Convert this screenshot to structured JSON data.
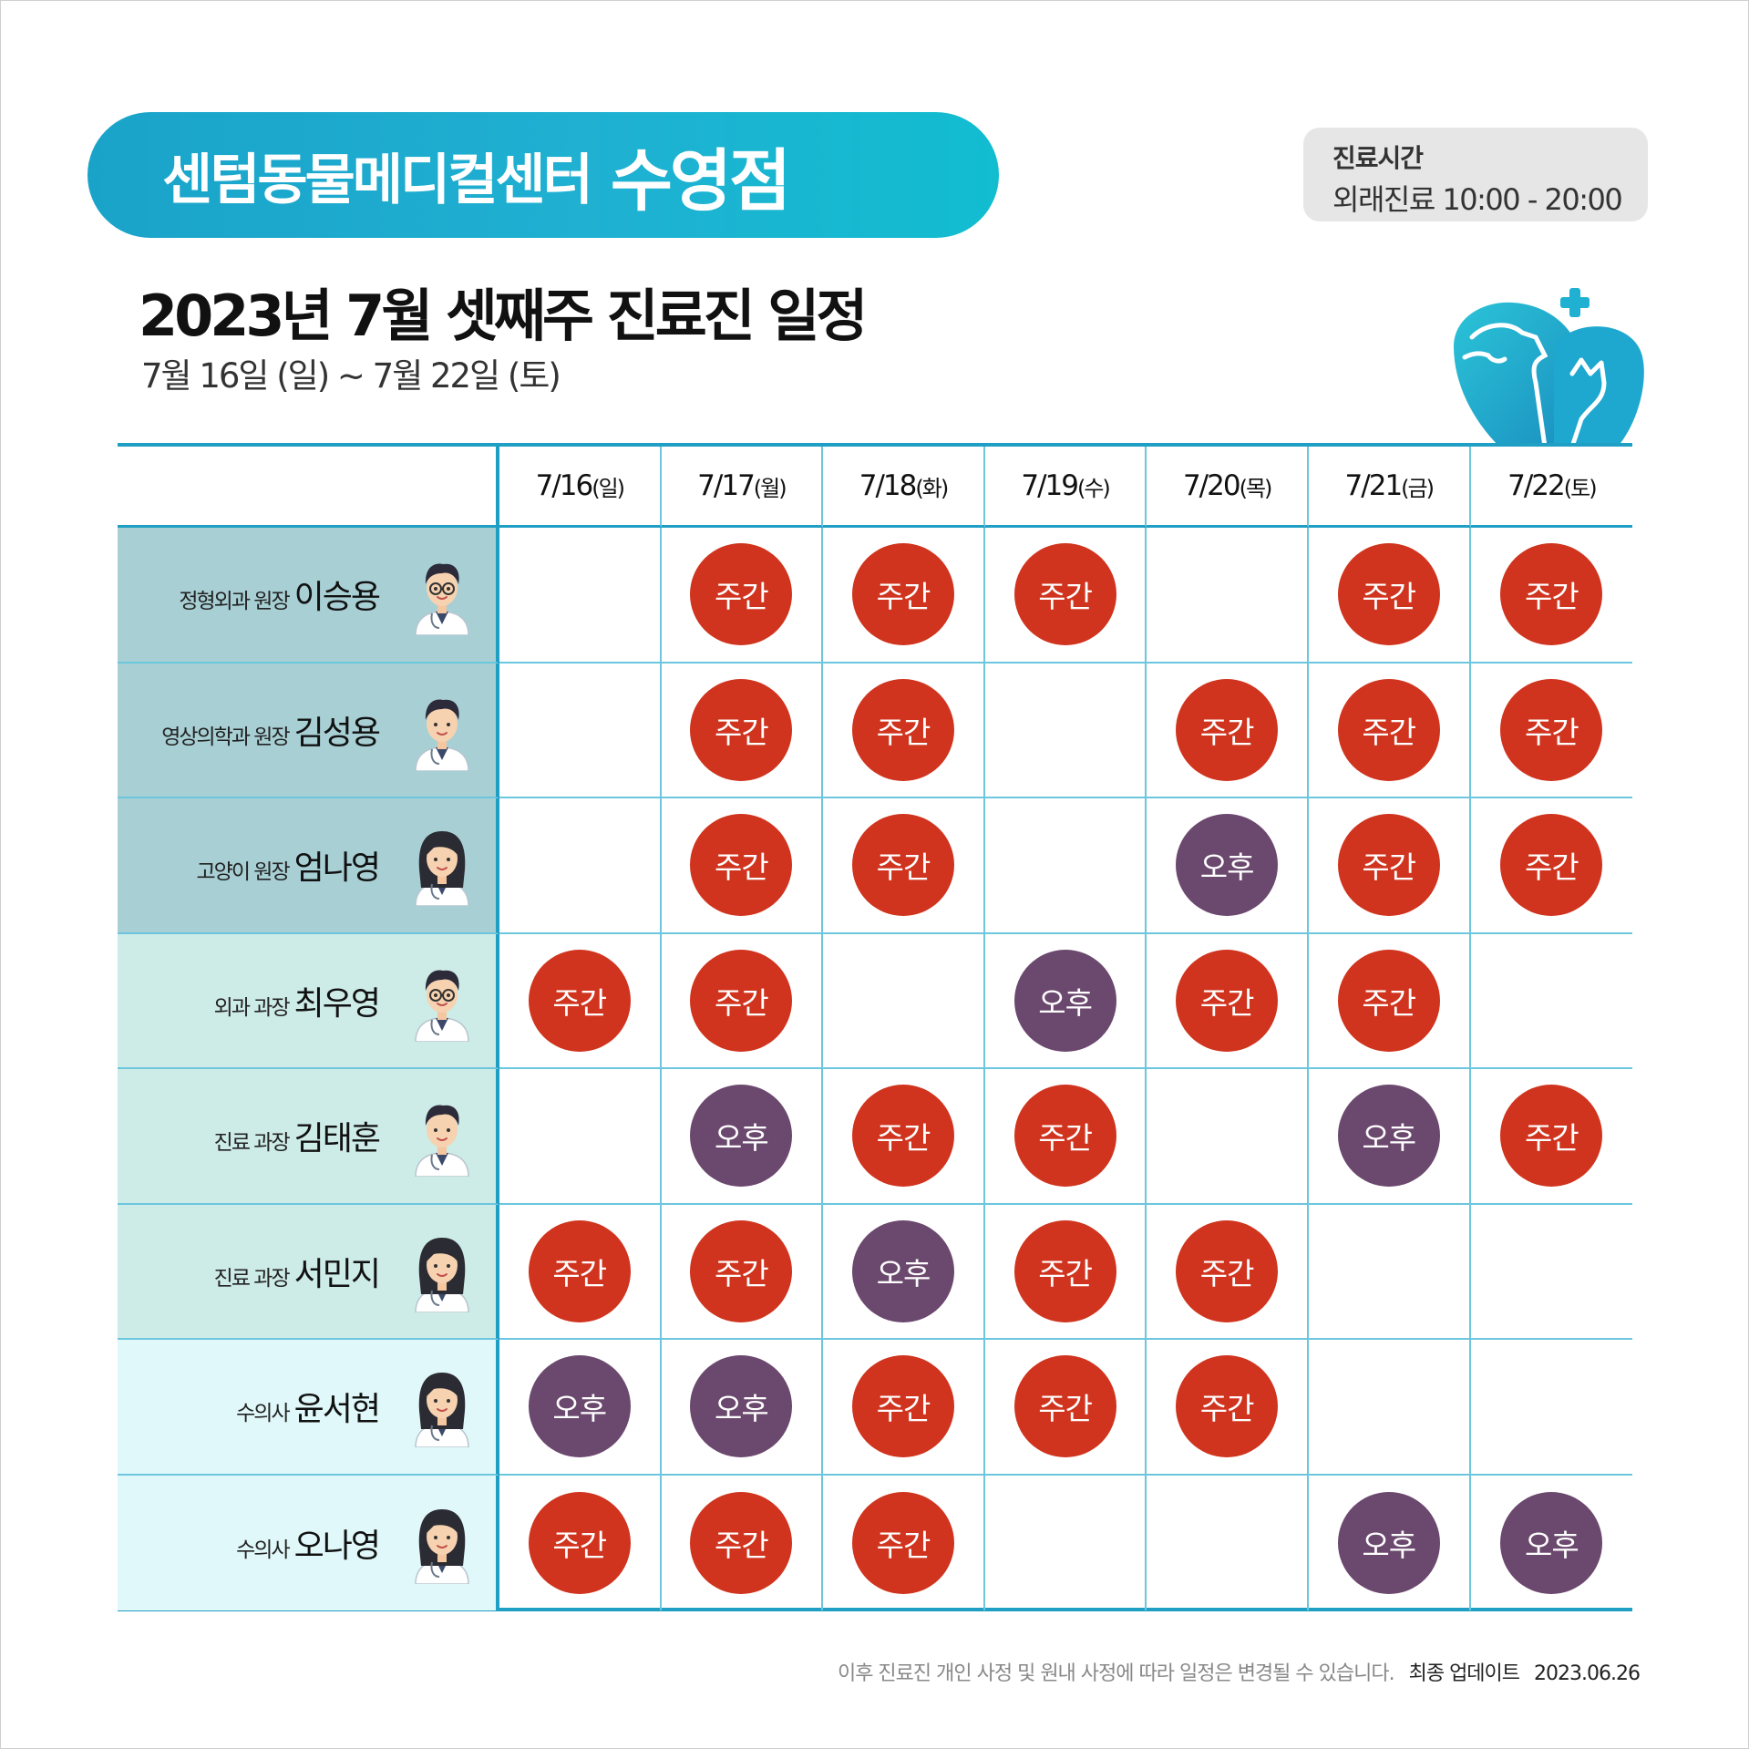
{
  "header": {
    "hospital_name": "센텀동물메디컬센터",
    "branch": "수영점",
    "hours_title": "진료시간",
    "hours_text": "외래진료 10:00 - 20:00",
    "title": "2023년 7월 셋째주 진료진 일정",
    "subtitle": "7월 16일 (일) ~ 7월 22일 (토)"
  },
  "colors": {
    "brand": "#1fb0d2",
    "day_shift": "#d0341e",
    "pm_shift": "#6b486e",
    "grid_line": "#1e9fc3"
  },
  "days": [
    {
      "date": "7/16",
      "dow": "(일)"
    },
    {
      "date": "7/17",
      "dow": "(월)"
    },
    {
      "date": "7/18",
      "dow": "(화)"
    },
    {
      "date": "7/19",
      "dow": "(수)"
    },
    {
      "date": "7/20",
      "dow": "(목)"
    },
    {
      "date": "7/21",
      "dow": "(금)"
    },
    {
      "date": "7/22",
      "dow": "(토)"
    }
  ],
  "doctors": [
    {
      "role": "정형외과 원장",
      "name": "이승용",
      "avatar": "male-doctor-glasses-avatar",
      "band": "a",
      "schedule": [
        "",
        "주간",
        "주간",
        "주간",
        "",
        "주간",
        "주간"
      ]
    },
    {
      "role": "영상의학과 원장",
      "name": "김성용",
      "avatar": "male-doctor-smiling-avatar",
      "band": "a",
      "schedule": [
        "",
        "주간",
        "주간",
        "",
        "주간",
        "주간",
        "주간"
      ]
    },
    {
      "role": "고양이 원장",
      "name": "엄나영",
      "avatar": "female-doctor-avatar",
      "band": "a",
      "schedule": [
        "",
        "주간",
        "주간",
        "",
        "오후",
        "주간",
        "주간"
      ]
    },
    {
      "role": "외과 과장",
      "name": "최우영",
      "avatar": "male-doctor-glasses-avatar",
      "band": "b",
      "schedule": [
        "주간",
        "주간",
        "",
        "오후",
        "주간",
        "주간",
        ""
      ]
    },
    {
      "role": "진료 과장",
      "name": "김태훈",
      "avatar": "male-doctor-avatar",
      "band": "b",
      "schedule": [
        "",
        "오후",
        "주간",
        "주간",
        "",
        "오후",
        "주간"
      ]
    },
    {
      "role": "진료 과장",
      "name": "서민지",
      "avatar": "female-doctor-long-hair-avatar",
      "band": "b",
      "schedule": [
        "주간",
        "주간",
        "오후",
        "주간",
        "주간",
        "",
        ""
      ]
    },
    {
      "role": "수의사",
      "name": "윤서현",
      "avatar": "female-vet-avatar",
      "band": "c",
      "schedule": [
        "오후",
        "오후",
        "주간",
        "주간",
        "주간",
        "",
        ""
      ]
    },
    {
      "role": "수의사",
      "name": "오나영",
      "avatar": "female-vet-avatar",
      "band": "c",
      "schedule": [
        "주간",
        "주간",
        "주간",
        "",
        "",
        "오후",
        "오후"
      ]
    }
  ],
  "footer": {
    "notice": "이후 진료진 개인 사정 및 원내 사정에 따라 일정은 변경될 수 있습니다.",
    "update_label": "최종 업데이트",
    "update_date": "2023.06.26"
  }
}
